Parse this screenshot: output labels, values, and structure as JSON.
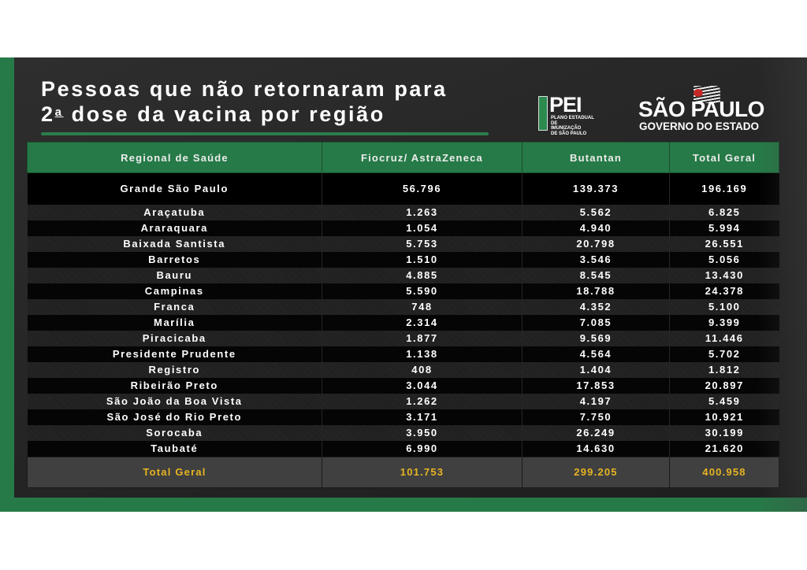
{
  "title": {
    "line1": "Pessoas que não retornaram para",
    "line2_num": "2",
    "line2_sup": "a",
    "line2_rest": " dose da vacina por região"
  },
  "logos": {
    "pei": {
      "big": "PEI",
      "line1": "PLANO ESTADUAL DE",
      "line2": "IMUNIZAÇÃO",
      "line3": "DE SÃO PAULO"
    },
    "sao_paulo": {
      "name": "SÃO PAULO",
      "subtitle": "GOVERNO DO ESTADO"
    }
  },
  "colors": {
    "green": "#267a47",
    "total_text": "#e6b422",
    "background": "#262626"
  },
  "table": {
    "headers": [
      "Regional de Saúde",
      "Fiocruz/ AstraZeneca",
      "Butantan",
      "Total Geral"
    ],
    "rows": [
      {
        "region": "Grande São Paulo",
        "fiocruz": "56.796",
        "butantan": "139.373",
        "total": "196.169"
      },
      {
        "region": "Araçatuba",
        "fiocruz": "1.263",
        "butantan": "5.562",
        "total": "6.825"
      },
      {
        "region": "Araraquara",
        "fiocruz": "1.054",
        "butantan": "4.940",
        "total": "5.994"
      },
      {
        "region": "Baixada Santista",
        "fiocruz": "5.753",
        "butantan": "20.798",
        "total": "26.551"
      },
      {
        "region": "Barretos",
        "fiocruz": "1.510",
        "butantan": "3.546",
        "total": "5.056"
      },
      {
        "region": "Bauru",
        "fiocruz": "4.885",
        "butantan": "8.545",
        "total": "13.430"
      },
      {
        "region": "Campinas",
        "fiocruz": "5.590",
        "butantan": "18.788",
        "total": "24.378"
      },
      {
        "region": "Franca",
        "fiocruz": "748",
        "butantan": "4.352",
        "total": "5.100"
      },
      {
        "region": "Marília",
        "fiocruz": "2.314",
        "butantan": "7.085",
        "total": "9.399"
      },
      {
        "region": "Piracicaba",
        "fiocruz": "1.877",
        "butantan": "9.569",
        "total": "11.446"
      },
      {
        "region": "Presidente Prudente",
        "fiocruz": "1.138",
        "butantan": "4.564",
        "total": "5.702"
      },
      {
        "region": "Registro",
        "fiocruz": "408",
        "butantan": "1.404",
        "total": "1.812"
      },
      {
        "region": "Ribeirão Preto",
        "fiocruz": "3.044",
        "butantan": "17.853",
        "total": "20.897"
      },
      {
        "region": "São João da Boa Vista",
        "fiocruz": "1.262",
        "butantan": "4.197",
        "total": "5.459"
      },
      {
        "region": "São José do Rio Preto",
        "fiocruz": "3.171",
        "butantan": "7.750",
        "total": "10.921"
      },
      {
        "region": "Sorocaba",
        "fiocruz": "3.950",
        "butantan": "26.249",
        "total": "30.199"
      },
      {
        "region": "Taubaté",
        "fiocruz": "6.990",
        "butantan": "14.630",
        "total": "21.620"
      }
    ],
    "total": {
      "label": "Total Geral",
      "fiocruz": "101.753",
      "butantan": "299.205",
      "total": "400.958"
    }
  }
}
